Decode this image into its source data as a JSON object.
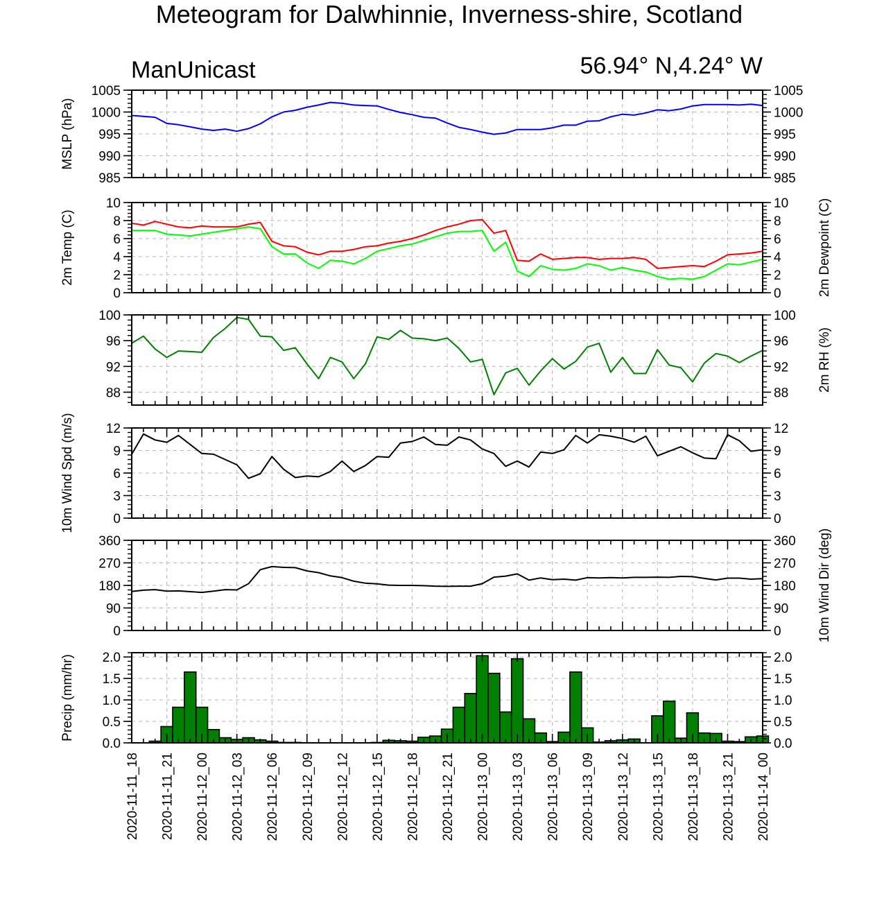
{
  "title": "Meteogram for Dalwhinnie, Inverness-shire, Scotland",
  "model": "ManUnicast",
  "location": "56.94° N,4.24° W",
  "chart_data": [
    {
      "type": "line",
      "ylabel": "MSLP (hPa)",
      "ylim": [
        985,
        1005
      ],
      "yticks": [
        "985",
        "990",
        "995",
        "1000",
        "1005"
      ],
      "grid": true,
      "series": [
        {
          "color": "#0000ff",
          "values": [
            999.2,
            999.0,
            998.8,
            997.4,
            997.1,
            996.6,
            996.1,
            995.8,
            996.1,
            995.6,
            996.2,
            997.3,
            998.9,
            1000.0,
            1000.4,
            1001.1,
            1001.6,
            1002.2,
            1002.0,
            1001.6,
            1001.5,
            1001.4,
            1000.6,
            999.9,
            999.4,
            998.8,
            998.6,
            997.5,
            996.5,
            996.0,
            995.4,
            994.9,
            995.2,
            996.0,
            996.0,
            996.0,
            996.4,
            997.0,
            997.0,
            997.9,
            998.0,
            998.9,
            999.5,
            999.3,
            999.8,
            1000.5,
            1000.3,
            1000.7,
            1001.4,
            1001.7,
            1001.7,
            1001.7,
            1001.6,
            1001.8,
            1001.5
          ]
        }
      ]
    },
    {
      "type": "line",
      "ylabel": "2m Temp (C)",
      "ylabel_right": "2m Dewpoint (C)",
      "ylim": [
        0,
        10
      ],
      "yticks": [
        "0",
        "2",
        "4",
        "6",
        "8",
        "10"
      ],
      "grid": true,
      "series": [
        {
          "color": "#ff0000",
          "values": [
            7.7,
            7.5,
            7.9,
            7.6,
            7.3,
            7.2,
            7.4,
            7.3,
            7.3,
            7.3,
            7.6,
            7.8,
            5.7,
            5.2,
            5.1,
            4.5,
            4.2,
            4.6,
            4.6,
            4.8,
            5.1,
            5.2,
            5.5,
            5.7,
            6.0,
            6.4,
            6.9,
            7.3,
            7.6,
            8.0,
            8.1,
            6.6,
            6.9,
            3.6,
            3.5,
            4.3,
            3.7,
            3.8,
            3.9,
            3.9,
            3.7,
            3.8,
            3.8,
            3.9,
            3.7,
            2.7,
            2.8,
            2.9,
            3.0,
            2.9,
            3.5,
            4.2,
            4.3,
            4.4,
            4.6
          ]
        },
        {
          "color": "#00ff00",
          "values": [
            6.9,
            6.9,
            6.9,
            6.5,
            6.4,
            6.3,
            6.5,
            6.7,
            6.9,
            7.1,
            7.3,
            7.1,
            5.1,
            4.3,
            4.3,
            3.3,
            2.7,
            3.6,
            3.5,
            3.2,
            3.8,
            4.6,
            4.9,
            5.2,
            5.4,
            5.8,
            6.2,
            6.6,
            6.8,
            6.8,
            6.9,
            4.6,
            5.6,
            2.4,
            1.8,
            3.0,
            2.6,
            2.5,
            2.7,
            3.2,
            3.0,
            2.5,
            2.8,
            2.5,
            2.3,
            1.8,
            1.5,
            1.6,
            1.5,
            1.8,
            2.5,
            3.2,
            3.1,
            3.4,
            3.7
          ]
        }
      ]
    },
    {
      "type": "line",
      "ylabel_right": "2m RH (%)",
      "ylim": [
        86,
        100
      ],
      "yticks": [
        "88",
        "92",
        "96",
        "100"
      ],
      "grid": true,
      "series": [
        {
          "color": "#008000",
          "values": [
            95.6,
            96.7,
            94.7,
            93.4,
            94.4,
            94.3,
            94.2,
            96.5,
            97.9,
            99.6,
            99.3,
            96.7,
            96.6,
            94.5,
            94.9,
            92.4,
            90.1,
            93.4,
            92.7,
            90.1,
            92.4,
            96.6,
            96.2,
            97.6,
            96.4,
            96.3,
            96.0,
            96.4,
            94.8,
            92.7,
            93.1,
            87.6,
            91.0,
            91.7,
            89.1,
            91.3,
            93.2,
            91.6,
            92.8,
            95.0,
            95.6,
            91.1,
            93.4,
            90.9,
            90.9,
            94.6,
            92.2,
            91.8,
            89.6,
            92.5,
            94.0,
            93.6,
            92.6,
            93.6,
            94.5
          ]
        }
      ]
    },
    {
      "type": "line",
      "ylabel": "10m Wind Spd (m/s)",
      "ylim": [
        0,
        12
      ],
      "yticks": [
        "0",
        "3",
        "6",
        "9",
        "12"
      ],
      "grid": true,
      "series": [
        {
          "color": "#000000",
          "values": [
            8.5,
            11.2,
            10.4,
            10.1,
            11.0,
            9.8,
            8.6,
            8.5,
            7.8,
            7.1,
            5.3,
            5.9,
            8.2,
            6.5,
            5.4,
            5.6,
            5.5,
            6.2,
            7.6,
            6.2,
            7.0,
            8.2,
            8.1,
            10.0,
            10.2,
            10.8,
            9.8,
            9.7,
            10.8,
            10.4,
            9.2,
            8.6,
            6.9,
            7.6,
            6.8,
            8.8,
            8.6,
            9.1,
            11.0,
            10.0,
            11.1,
            10.9,
            10.6,
            10.1,
            10.9,
            8.3,
            8.9,
            9.5,
            8.7,
            8.0,
            7.9,
            11.1,
            10.3,
            8.9,
            9.1
          ]
        }
      ]
    },
    {
      "type": "line",
      "ylabel_right": "10m Wind Dir (deg)",
      "ylim": [
        0,
        360
      ],
      "yticks": [
        "0",
        "90",
        "180",
        "270",
        "360"
      ],
      "grid": true,
      "series": [
        {
          "color": "#000000",
          "values": [
            156,
            161,
            163,
            157,
            158,
            155,
            152,
            157,
            163,
            162,
            187,
            243,
            255,
            252,
            251,
            238,
            231,
            218,
            211,
            197,
            189,
            186,
            181,
            180,
            180,
            179,
            177,
            176,
            177,
            177,
            187,
            213,
            217,
            226,
            201,
            210,
            203,
            205,
            201,
            211,
            210,
            211,
            210,
            212,
            212,
            213,
            212,
            216,
            215,
            208,
            202,
            209,
            209,
            205,
            207
          ]
        }
      ]
    },
    {
      "type": "bar",
      "ylabel": "Precip (mm/hr)",
      "ylim": [
        0,
        2.1
      ],
      "yticks": [
        "0.0",
        "0.5",
        "1.0",
        "1.5",
        "2.0"
      ],
      "grid": true,
      "fill": "#008000",
      "values": [
        0.0,
        0.04,
        0.38,
        0.83,
        1.65,
        0.83,
        0.31,
        0.12,
        0.08,
        0.12,
        0.07,
        0.04,
        0.01,
        0.01,
        0.0,
        0.0,
        0.0,
        0.0,
        0.0,
        0.0,
        0.01,
        0.06,
        0.05,
        0.04,
        0.13,
        0.16,
        0.32,
        0.83,
        1.15,
        2.03,
        1.62,
        0.72,
        1.96,
        0.56,
        0.23,
        0.03,
        0.25,
        1.65,
        0.35,
        0.02,
        0.05,
        0.07,
        0.09,
        0.0,
        0.63,
        0.97,
        0.11,
        0.7,
        0.23,
        0.22,
        0.04,
        0.03,
        0.14,
        0.16
      ]
    }
  ],
  "xaxis": {
    "labels": [
      "2020-11-11_18",
      "2020-11-11_21",
      "2020-11-12_00",
      "2020-11-12_03",
      "2020-11-12_06",
      "2020-11-12_09",
      "2020-11-12_12",
      "2020-11-12_15",
      "2020-11-12_18",
      "2020-11-12_21",
      "2020-11-13_00",
      "2020-11-13_03",
      "2020-11-13_06",
      "2020-11-13_09",
      "2020-11-13_12",
      "2020-11-13_15",
      "2020-11-13_18",
      "2020-11-13_21",
      "2020-11-14_00"
    ]
  }
}
